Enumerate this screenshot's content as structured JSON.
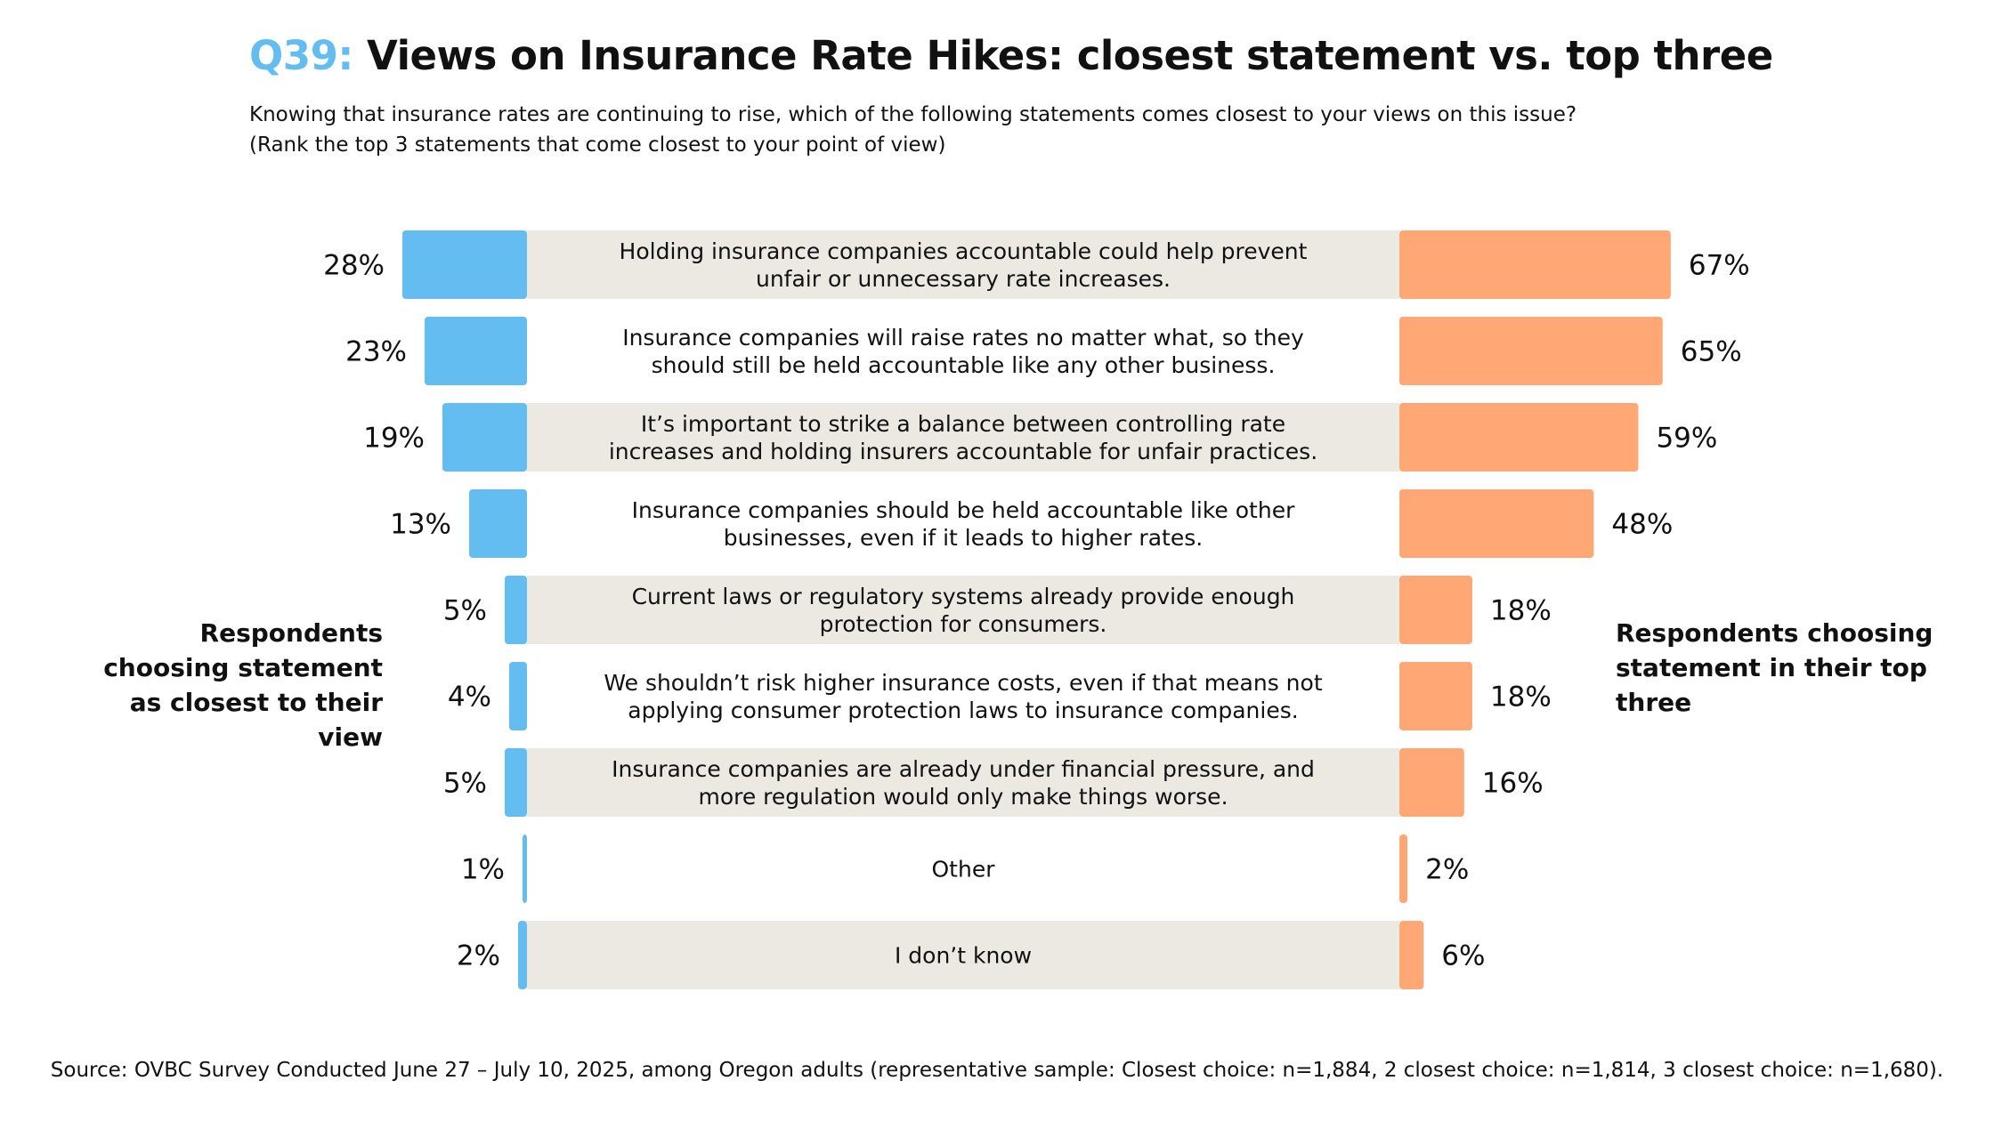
{
  "header": {
    "question_number": "Q39:",
    "title": "Views on Insurance Rate Hikes: closest statement vs. top three",
    "subtitle_line1": "Knowing that insurance rates are continuing to rise, which of the following statements comes closest to your views on this issue?",
    "subtitle_line2": "(Rank the top 3 statements that come closest to your point of view)"
  },
  "colors": {
    "closest": "#63bdf0",
    "top_three": "#ffa775",
    "statement_band": "#ece9e2",
    "question_accent": "#63bdf0"
  },
  "chart_data": {
    "type": "bar",
    "orientation": "horizontal-butterfly",
    "left_label": "Respondents choosing statement as closest to their view",
    "right_label": "Respondents choosing statement in their top three",
    "unit": "%",
    "categories": [
      [
        "Holding insurance companies accountable could help prevent",
        "unfair or unnecessary rate increases."
      ],
      [
        "Insurance companies will raise rates no matter what, so they",
        "should still be held accountable like any other business."
      ],
      [
        "It’s important to strike a balance between controlling rate",
        "increases and holding insurers accountable for unfair practices."
      ],
      [
        "Insurance companies should be held accountable like other",
        "businesses, even if it leads to higher rates."
      ],
      [
        "Current laws or regulatory systems already provide enough",
        "protection for consumers."
      ],
      [
        "We shouldn’t risk higher insurance costs, even if that means not",
        "applying consumer protection laws to insurance companies."
      ],
      [
        "Insurance companies are already under financial pressure, and",
        "more regulation would only make things worse."
      ],
      [
        "Other"
      ],
      [
        "I don’t know"
      ]
    ],
    "series": [
      {
        "name": "Respondents choosing statement as closest to their view",
        "side": "left",
        "values": [
          28,
          23,
          19,
          13,
          5,
          4,
          5,
          1,
          2
        ]
      },
      {
        "name": "Respondents choosing statement in their top three",
        "side": "right",
        "values": [
          67,
          65,
          59,
          48,
          18,
          18,
          16,
          2,
          6
        ]
      }
    ]
  },
  "footer": {
    "source": "Source: OVBC Survey Conducted June 27 – July 10, 2025, among Oregon adults (representative sample: Closest choice: n=1,884, 2 closest choice: n=1,814, 3 closest choice: n=1,680)."
  }
}
